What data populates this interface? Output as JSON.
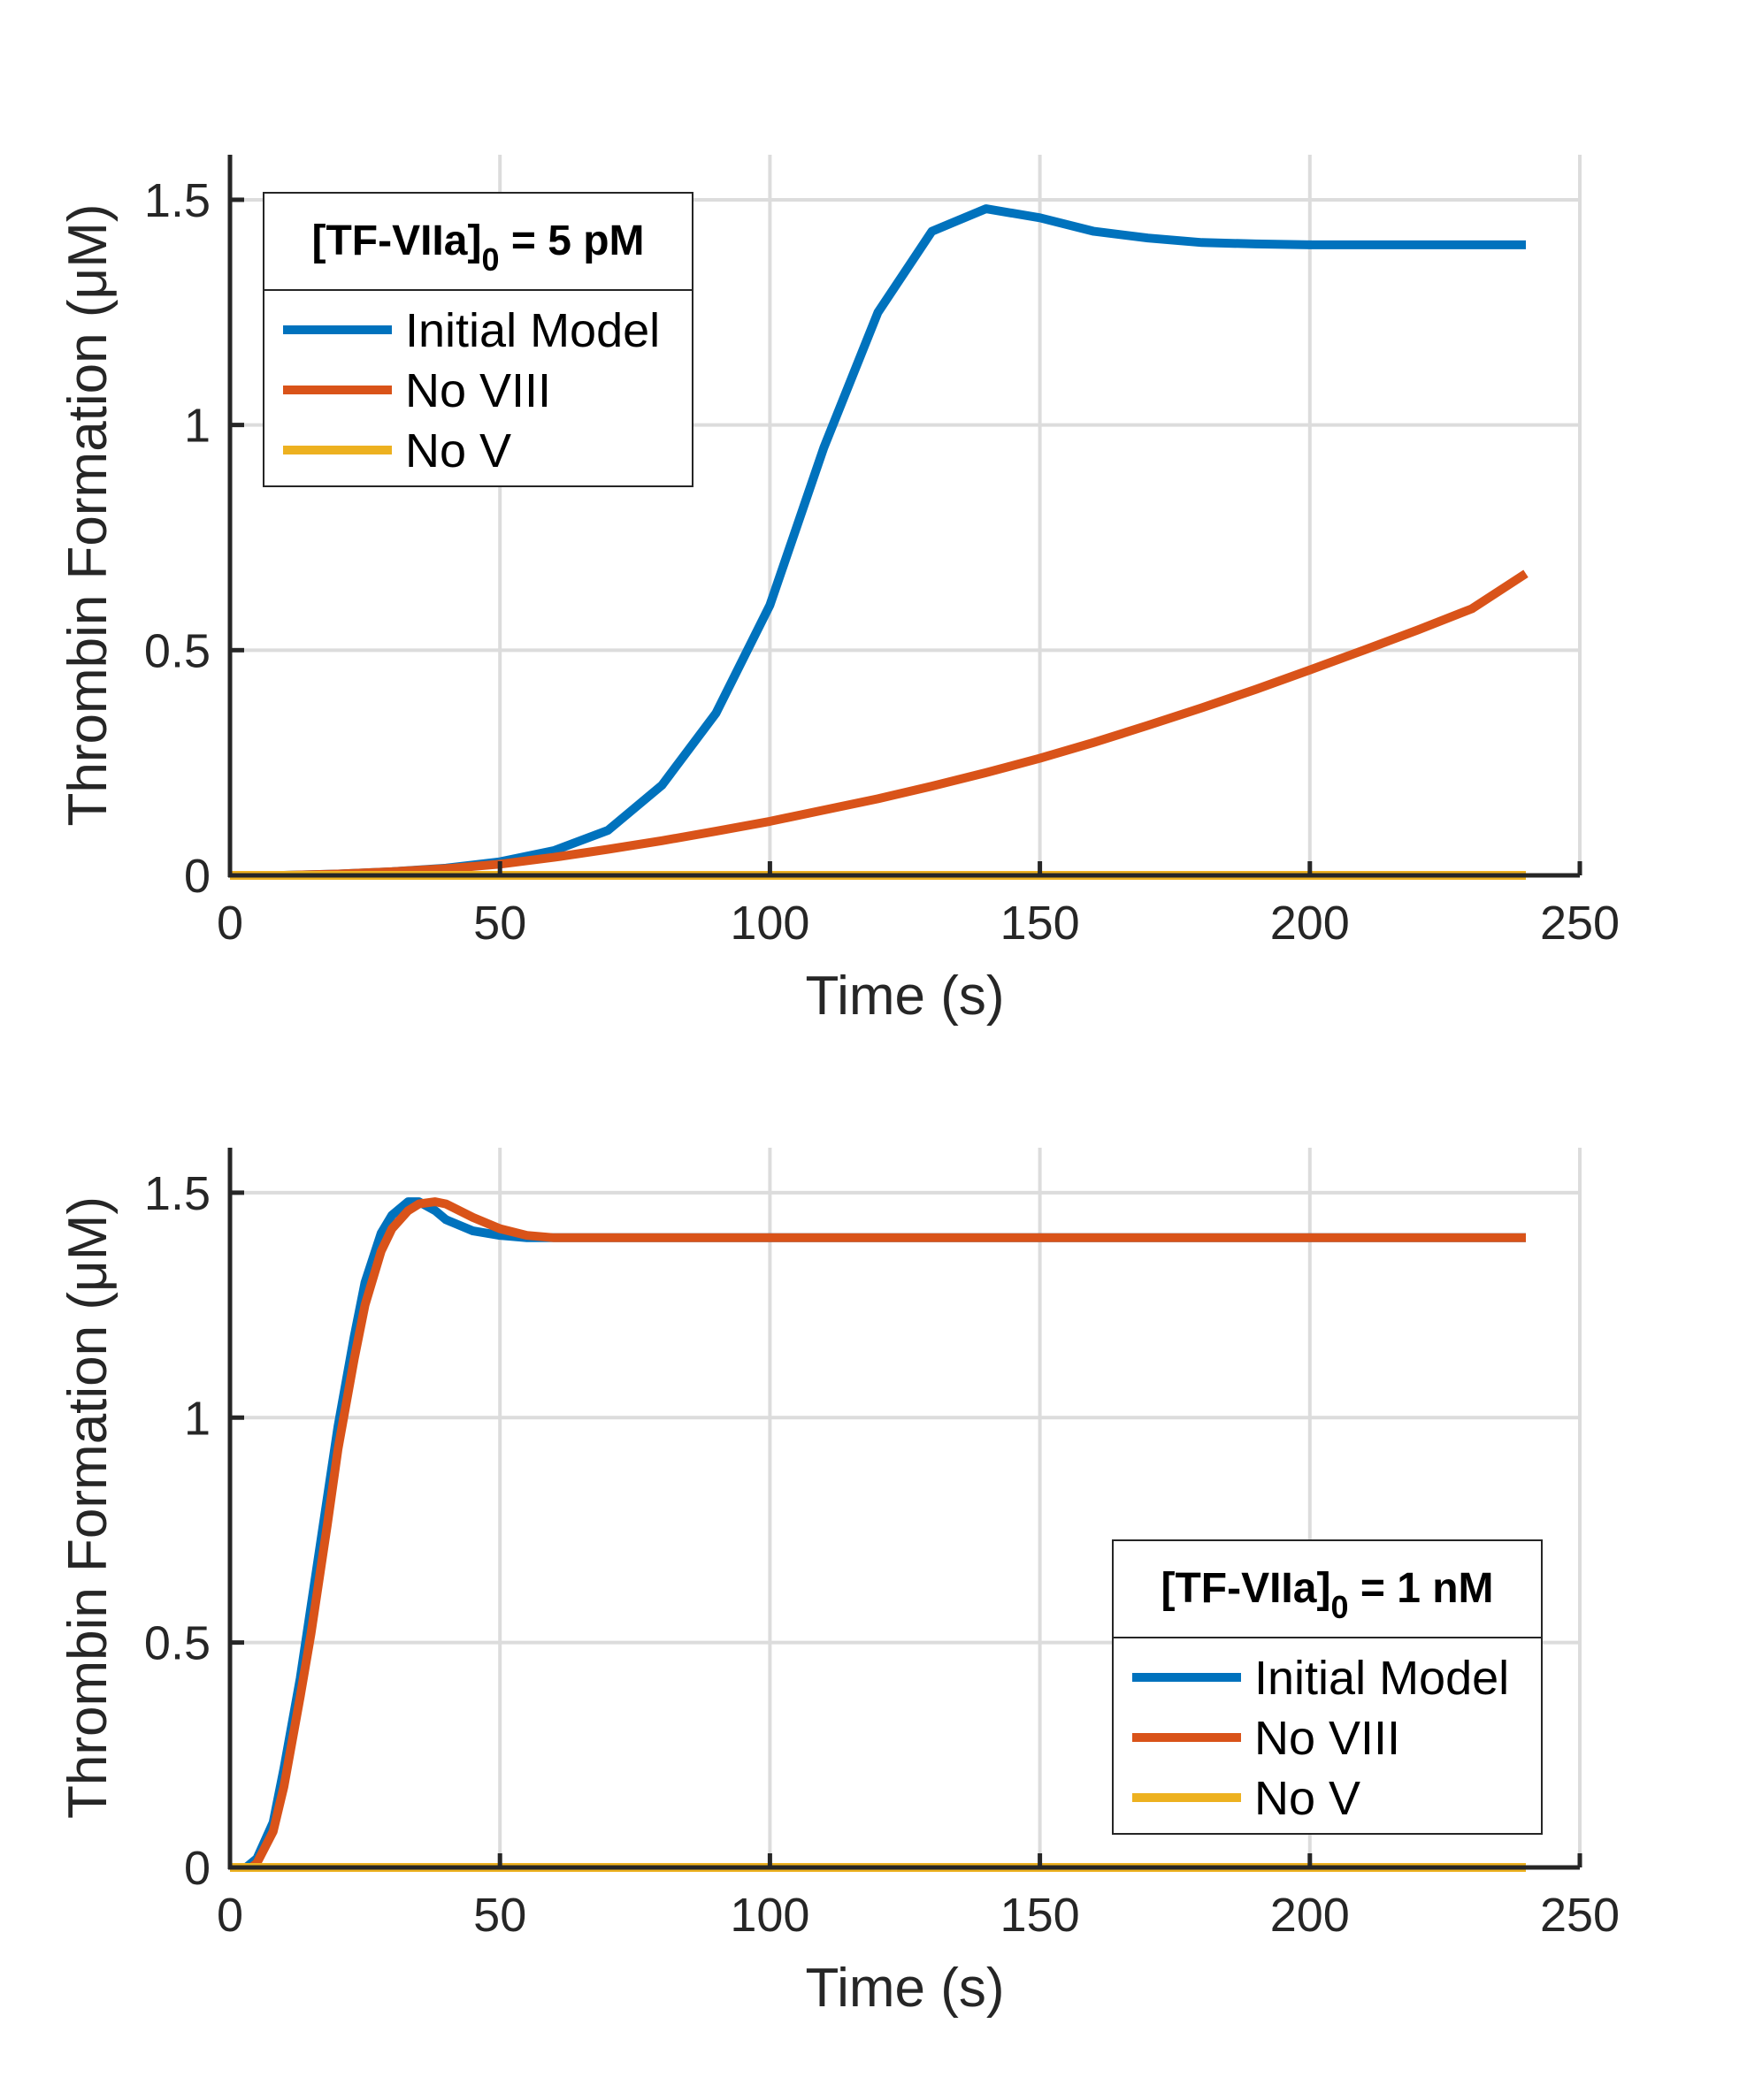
{
  "chart_data": [
    {
      "type": "line",
      "ylabel": "Thrombin Formation (μM)",
      "xlabel": "Time (s)",
      "xlim": [
        0,
        250
      ],
      "ylim": [
        0,
        1.6
      ],
      "xticks": [
        "0",
        "50",
        "100",
        "150",
        "200",
        "250"
      ],
      "yticks": [
        "0",
        "0.5",
        "1",
        "1.5"
      ],
      "xtick_values": [
        0,
        50,
        100,
        150,
        200,
        250
      ],
      "ytick_values": [
        0,
        0.5,
        1,
        1.5
      ],
      "grid": true,
      "legend_position": "top-left",
      "legend_title": {
        "main": "[TF-VIIa]",
        "sub": "0",
        "rest": " = 5 pM"
      },
      "series": [
        {
          "name": "Initial Model",
          "color": "#0072BD",
          "x": [
            0,
            10,
            20,
            30,
            40,
            50,
            60,
            70,
            80,
            90,
            100,
            110,
            120,
            130,
            140,
            150,
            160,
            170,
            180,
            190,
            200,
            210,
            220,
            230,
            240
          ],
          "y": [
            0,
            0,
            0.003,
            0.008,
            0.016,
            0.03,
            0.055,
            0.1,
            0.2,
            0.36,
            0.6,
            0.95,
            1.25,
            1.43,
            1.48,
            1.46,
            1.43,
            1.415,
            1.405,
            1.402,
            1.4,
            1.4,
            1.4,
            1.4,
            1.4
          ]
        },
        {
          "name": "No VIII",
          "color": "#D95319",
          "x": [
            0,
            10,
            20,
            30,
            40,
            50,
            60,
            70,
            80,
            90,
            100,
            110,
            120,
            130,
            140,
            150,
            160,
            170,
            180,
            190,
            200,
            210,
            220,
            230,
            240
          ],
          "y": [
            0,
            0,
            0.003,
            0.008,
            0.015,
            0.025,
            0.04,
            0.058,
            0.077,
            0.098,
            0.12,
            0.145,
            0.17,
            0.198,
            0.228,
            0.26,
            0.295,
            0.333,
            0.372,
            0.413,
            0.456,
            0.5,
            0.545,
            0.592,
            0.67
          ]
        },
        {
          "name": "No V",
          "color": "#EDB120",
          "x": [
            0,
            240
          ],
          "y": [
            0,
            0
          ]
        }
      ]
    },
    {
      "type": "line",
      "ylabel": "Thrombin Formation (μM)",
      "xlabel": "Time (s)",
      "xlim": [
        0,
        250
      ],
      "ylim": [
        0,
        1.6
      ],
      "xticks": [
        "0",
        "50",
        "100",
        "150",
        "200",
        "250"
      ],
      "yticks": [
        "0",
        "0.5",
        "1",
        "1.5"
      ],
      "xtick_values": [
        0,
        50,
        100,
        150,
        200,
        250
      ],
      "ytick_values": [
        0,
        0.5,
        1,
        1.5
      ],
      "grid": true,
      "legend_position": "bottom-right",
      "legend_title": {
        "main": "[TF-VIIa]",
        "sub": "0",
        "rest": " = 1 nM"
      },
      "series": [
        {
          "name": "Initial Model",
          "color": "#0072BD",
          "x": [
            0,
            3,
            5,
            8,
            10,
            13,
            15,
            18,
            20,
            23,
            25,
            28,
            30,
            33,
            35,
            38,
            40,
            45,
            50,
            55,
            60,
            70,
            80,
            100,
            150,
            200,
            240
          ],
          "y": [
            0,
            0,
            0.02,
            0.1,
            0.22,
            0.42,
            0.58,
            0.82,
            0.98,
            1.18,
            1.3,
            1.41,
            1.45,
            1.48,
            1.48,
            1.46,
            1.44,
            1.415,
            1.405,
            1.4,
            1.4,
            1.4,
            1.4,
            1.4,
            1.4,
            1.4,
            1.4
          ]
        },
        {
          "name": "No VIII",
          "color": "#D95319",
          "x": [
            0,
            4,
            5,
            8,
            10,
            13,
            15,
            18,
            20,
            23,
            25,
            28,
            30,
            33,
            35,
            38,
            40,
            45,
            50,
            55,
            60,
            70,
            80,
            100,
            150,
            200,
            240
          ],
          "y": [
            0,
            0,
            0.01,
            0.08,
            0.18,
            0.38,
            0.52,
            0.76,
            0.93,
            1.13,
            1.25,
            1.37,
            1.42,
            1.46,
            1.475,
            1.48,
            1.475,
            1.445,
            1.42,
            1.405,
            1.4,
            1.4,
            1.4,
            1.4,
            1.4,
            1.4,
            1.4
          ]
        },
        {
          "name": "No V",
          "color": "#EDB120",
          "x": [
            0,
            240
          ],
          "y": [
            0,
            0
          ]
        }
      ]
    }
  ]
}
